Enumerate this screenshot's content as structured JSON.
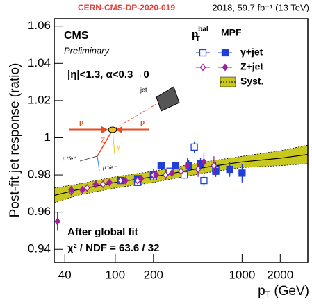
{
  "chart_data": {
    "type": "scatter",
    "header": {
      "id": "CERN-CMS-DP-2020-019",
      "lumi": "2018, 59.7 fb⁻¹ (13 TeV)"
    },
    "y_label": "Post-fit jet response (ratio)",
    "x_label": {
      "main": "p",
      "sub": "T",
      "unit": " (GeV)"
    },
    "log_x": true,
    "xlim": [
      33,
      3300
    ],
    "xticks": [
      40,
      100,
      200,
      1000,
      2000
    ],
    "ylim": [
      0.933,
      1.064
    ],
    "yticks": [
      0.94,
      0.96,
      0.98,
      1,
      1.02,
      1.04,
      1.06
    ],
    "annotations": {
      "cms": "CMS",
      "prelim": "Preliminary",
      "cuts": "|η|<1.3,  α<0.3→0",
      "fit": "After global fit",
      "chi2": "χ² / NDF = 63.6 / 32",
      "jet": "jet",
      "p1": "p",
      "p2": "p",
      "z": "Z",
      "gamma": "γ",
      "mu_plus": "μ⁺/e⁺",
      "mu_minus": "μ⁻/e⁻"
    },
    "legend": {
      "bal": {
        "main": "p",
        "sub": "T",
        "sup": "bal"
      },
      "mpf": "MPF",
      "syst": "Syst."
    },
    "series": [
      {
        "name": "γ+jet",
        "method": "bal",
        "marker": "square-open",
        "color": "#1f3fd6",
        "x": [
          150,
          200,
          270,
          350,
          420,
          500,
          620
        ],
        "values": [
          0.976,
          0.979,
          0.982,
          0.98,
          0.995,
          0.977,
          0.983
        ],
        "errors": [
          0.002,
          0.002,
          0.002,
          0.002,
          0.003,
          0.003,
          0.004
        ]
      },
      {
        "name": "γ+jet",
        "method": "mpf",
        "marker": "square",
        "color": "#1f3fd6",
        "x": [
          110,
          150,
          200,
          230,
          300,
          380,
          470,
          620,
          800,
          1000
        ],
        "values": [
          0.977,
          0.978,
          0.98,
          0.985,
          0.985,
          0.985,
          0.986,
          0.982,
          0.983,
          0.981
        ],
        "errors": [
          0.001,
          0.001,
          0.002,
          0.002,
          0.002,
          0.003,
          0.003,
          0.003,
          0.004,
          0.005
        ]
      },
      {
        "name": "Z+jet",
        "method": "bal",
        "marker": "diamond-open",
        "color": "#a020a0",
        "x": [
          45,
          60,
          80,
          110,
          150,
          200,
          250,
          330,
          450,
          600
        ],
        "values": [
          0.971,
          0.973,
          0.975,
          0.977,
          0.977,
          0.98,
          0.98,
          0.982,
          0.983,
          0.985
        ],
        "errors": [
          0.002,
          0.002,
          0.002,
          0.002,
          0.002,
          0.003,
          0.003,
          0.003,
          0.004,
          0.005
        ]
      },
      {
        "name": "Z+jet",
        "method": "mpf",
        "marker": "diamond",
        "color": "#a020a0",
        "x": [
          35,
          45,
          55,
          70,
          90,
          120,
          160,
          210,
          280,
          370,
          500
        ],
        "values": [
          0.955,
          0.972,
          0.972,
          0.975,
          0.976,
          0.977,
          0.978,
          0.98,
          0.981,
          0.985,
          0.987
        ],
        "errors": [
          0.005,
          0.002,
          0.002,
          0.002,
          0.002,
          0.002,
          0.002,
          0.003,
          0.003,
          0.004,
          0.005
        ]
      }
    ],
    "fit": {
      "x": [
        33,
        50,
        100,
        200,
        500,
        1000,
        2000,
        3300
      ],
      "values": [
        0.969,
        0.972,
        0.976,
        0.979,
        0.984,
        0.987,
        0.989,
        0.991
      ],
      "upper": [
        0.973,
        0.975,
        0.979,
        0.982,
        0.987,
        0.99,
        0.993,
        0.996
      ],
      "lower": [
        0.965,
        0.969,
        0.973,
        0.976,
        0.981,
        0.984,
        0.985,
        0.986
      ],
      "band_color": "#c8c81e"
    }
  }
}
